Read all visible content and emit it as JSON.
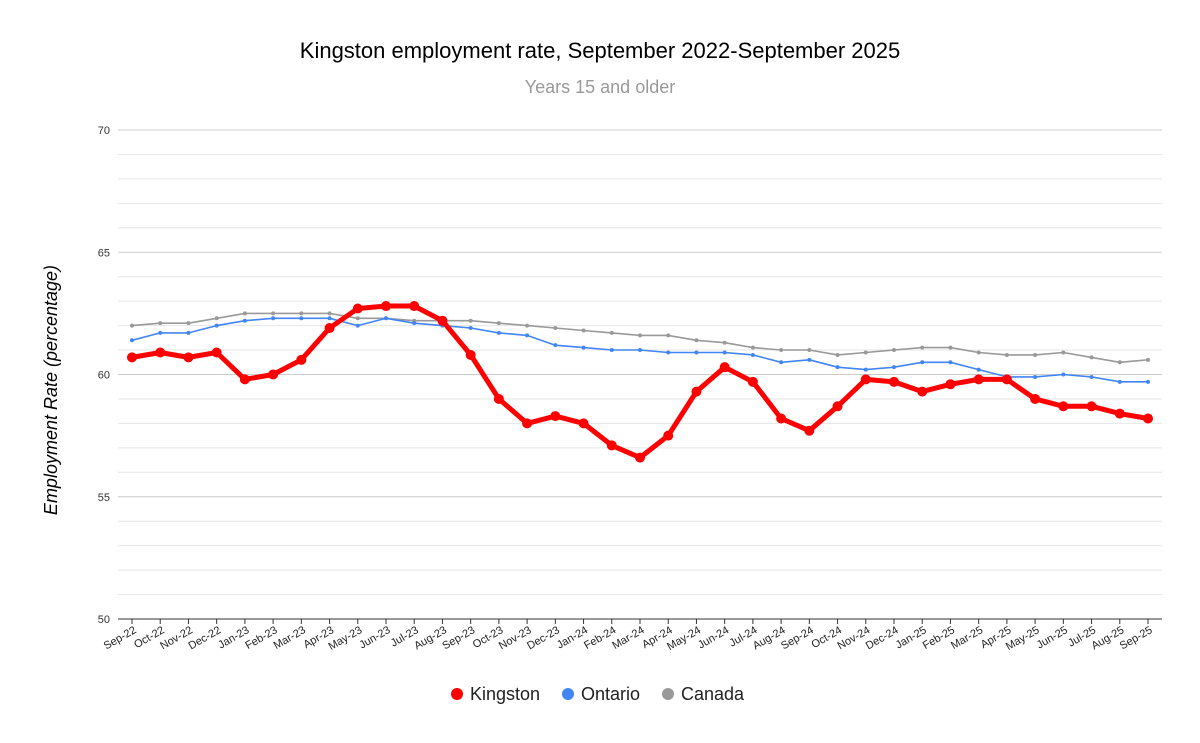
{
  "chart_data": {
    "type": "line",
    "title": "Kingston employment rate, September 2022-September 2025",
    "subtitle": "Years 15 and older",
    "xlabel": "",
    "ylabel": "Employment Rate  (percentage)",
    "ylim": [
      50,
      70
    ],
    "yticks": [
      50,
      55,
      60,
      65,
      70
    ],
    "grid": true,
    "legend_position": "bottom",
    "categories": [
      "Sep-22",
      "Oct-22",
      "Nov-22",
      "Dec-22",
      "Jan-23",
      "Feb-23",
      "Mar-23",
      "Apr-23",
      "May-23",
      "Jun-23",
      "Jul-23",
      "Aug-23",
      "Sep-23",
      "Oct-23",
      "Nov-23",
      "Dec-23",
      "Jan-24",
      "Feb-24",
      "Mar-24",
      "Apr-24",
      "May-24",
      "Jun-24",
      "Jul-24",
      "Aug-24",
      "Sep-24",
      "Oct-24",
      "Nov-24",
      "Dec-24",
      "Jan-25",
      "Feb-25",
      "Mar-25",
      "Apr-25",
      "May-25",
      "Jun-25",
      "Jul-25",
      "Aug-25",
      "Sep-25"
    ],
    "series": [
      {
        "name": "Kingston",
        "color": "#ff0000",
        "values": [
          60.7,
          60.9,
          60.7,
          60.9,
          59.8,
          60.0,
          60.6,
          61.9,
          62.7,
          62.8,
          62.8,
          62.2,
          60.8,
          59.0,
          58.0,
          58.3,
          58.0,
          57.1,
          56.6,
          57.5,
          59.3,
          60.3,
          59.7,
          58.2,
          57.7,
          58.7,
          59.8,
          59.7,
          59.3,
          59.6,
          59.8,
          59.8,
          59.0,
          58.7,
          58.7,
          58.4,
          58.2
        ]
      },
      {
        "name": "Ontario",
        "color": "#4285f4",
        "values": [
          61.4,
          61.7,
          61.7,
          62.0,
          62.2,
          62.3,
          62.3,
          62.3,
          62.0,
          62.3,
          62.1,
          62.0,
          61.9,
          61.7,
          61.6,
          61.2,
          61.1,
          61.0,
          61.0,
          60.9,
          60.9,
          60.9,
          60.8,
          60.5,
          60.6,
          60.3,
          60.2,
          60.3,
          60.5,
          60.5,
          60.2,
          59.9,
          59.9,
          60.0,
          59.9,
          59.7,
          59.7
        ]
      },
      {
        "name": "Canada",
        "color": "#999999",
        "values": [
          62.0,
          62.1,
          62.1,
          62.3,
          62.5,
          62.5,
          62.5,
          62.5,
          62.3,
          62.3,
          62.2,
          62.2,
          62.2,
          62.1,
          62.0,
          61.9,
          61.8,
          61.7,
          61.6,
          61.6,
          61.4,
          61.3,
          61.1,
          61.0,
          61.0,
          60.8,
          60.9,
          61.0,
          61.1,
          61.1,
          60.9,
          60.8,
          60.8,
          60.9,
          60.7,
          60.5,
          60.6
        ]
      }
    ]
  }
}
